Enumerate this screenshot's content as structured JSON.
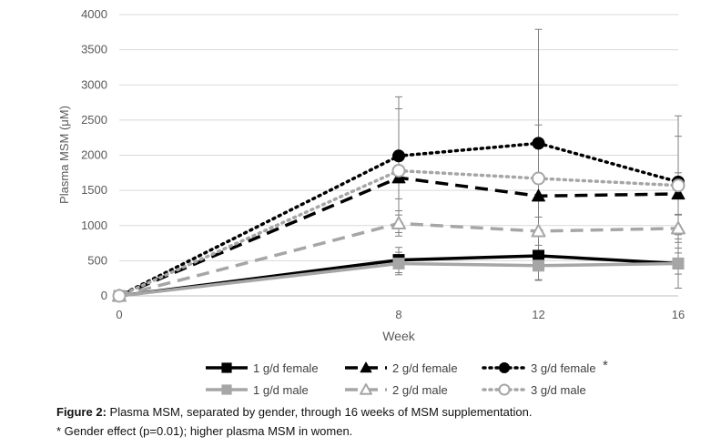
{
  "chart_data": {
    "type": "line",
    "xlabel": "Week",
    "ylabel": "Plasma MSM (μM)",
    "x": [
      0,
      8,
      12,
      16
    ],
    "x_ticks": [
      "0",
      "8",
      "12",
      "16"
    ],
    "ylim": [
      0,
      4000
    ],
    "y_ticks": [
      "0",
      "500",
      "1000",
      "1500",
      "2000",
      "2500",
      "3000",
      "3500",
      "4000"
    ],
    "grid": true,
    "legend_position": "bottom",
    "series": [
      {
        "name": "1 g/d female",
        "values": [
          0,
          510,
          570,
          460
        ],
        "err": [
          0,
          180,
          350,
          350
        ],
        "color": "#000000",
        "dash": "solid",
        "marker": "square",
        "filled": true
      },
      {
        "name": "2 g/d female",
        "values": [
          0,
          1680,
          1420,
          1450
        ],
        "err": [
          0,
          300,
          300,
          300
        ],
        "color": "#000000",
        "dash": "long",
        "marker": "triangle",
        "filled": true
      },
      {
        "name": "3 g/d female",
        "values": [
          0,
          1990,
          2170,
          1620
        ],
        "err": [
          0,
          840,
          1620,
          940
        ],
        "color": "#000000",
        "dash": "dot",
        "marker": "circle",
        "filled": true
      },
      {
        "name": "1 g/d male",
        "values": [
          0,
          460,
          430,
          460
        ],
        "err": [
          0,
          160,
          200,
          150
        ],
        "color": "#a6a6a6",
        "dash": "solid",
        "marker": "square",
        "filled": true
      },
      {
        "name": "2 g/d male",
        "values": [
          0,
          1030,
          920,
          960
        ],
        "err": [
          0,
          180,
          200,
          200
        ],
        "color": "#a6a6a6",
        "dash": "long",
        "marker": "triangle",
        "filled": false
      },
      {
        "name": "3 g/d male",
        "values": [
          0,
          1780,
          1670,
          1570
        ],
        "err": [
          0,
          880,
          760,
          700
        ],
        "color": "#a6a6a6",
        "dash": "dot",
        "marker": "circle",
        "filled": false
      }
    ],
    "legend_asterisk": "*"
  },
  "caption": {
    "label": "Figure 2:",
    "text": " Plasma MSM, separated by gender, through 16 weeks of MSM supplementation.",
    "footnote": "* Gender effect (p=0.01); higher plasma MSM in women."
  }
}
